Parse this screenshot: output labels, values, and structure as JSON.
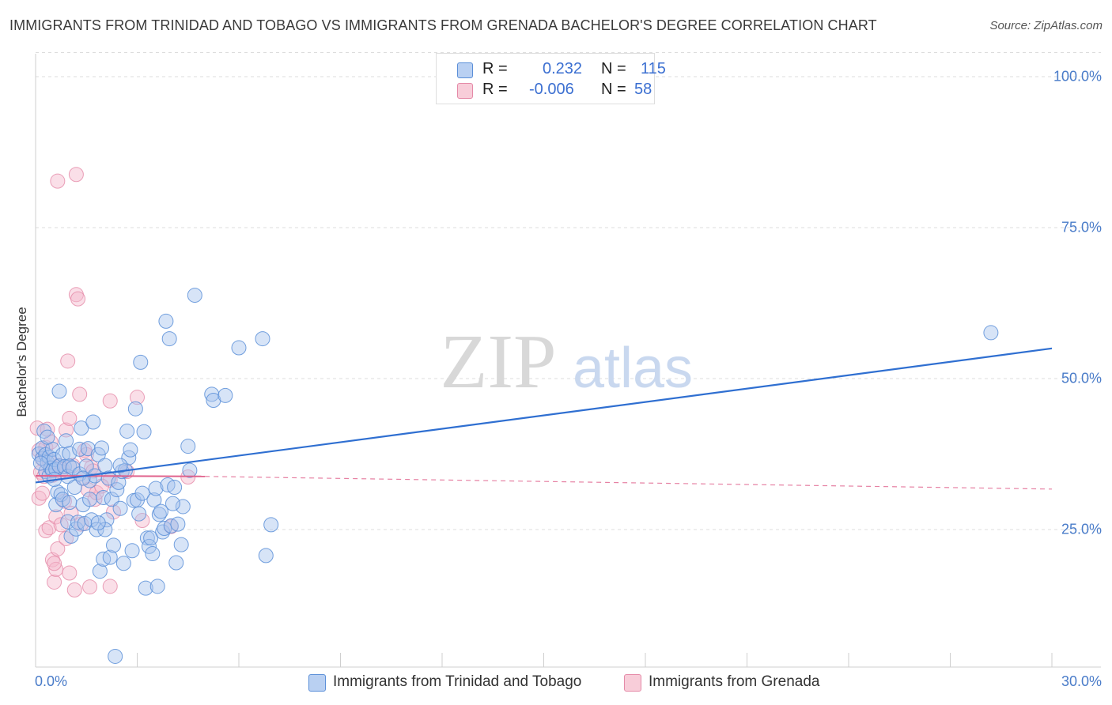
{
  "header": {
    "title": "IMMIGRANTS FROM TRINIDAD AND TOBAGO VS IMMIGRANTS FROM GRENADA BACHELOR'S DEGREE CORRELATION CHART",
    "source": "Source: ZipAtlas.com"
  },
  "legend": {
    "r_label": "R =",
    "n_label": "N =",
    "series_a": {
      "r": "0.232",
      "n": "115"
    },
    "series_b": {
      "r": "-0.006",
      "n": "58"
    }
  },
  "watermark": {
    "part1": "ZIP",
    "part2": "atlas"
  },
  "colors": {
    "blue_fill": "#a7c4ee",
    "blue_stroke": "#5b8fd8",
    "blue_line": "#2f6fd1",
    "pink_fill": "#f4b8cb",
    "pink_stroke": "#e58aa8",
    "pink_line": "#e0628c",
    "grid": "#dddddd",
    "tick_text": "#4a7cc9"
  },
  "chart_data": {
    "type": "scatter",
    "title": "IMMIGRANTS FROM TRINIDAD AND TOBAGO VS IMMIGRANTS FROM GRENADA BACHELOR'S DEGREE CORRELATION CHART",
    "xlabel": "",
    "ylabel": "Bachelor's Degree",
    "xlim": [
      0,
      30
    ],
    "ylim": [
      0,
      104
    ],
    "x_tick_labels": [
      "0.0%",
      "30.0%"
    ],
    "y_ticks": [
      25,
      50,
      75,
      100
    ],
    "y_tick_labels": [
      "25.0%",
      "50.0%",
      "75.0%",
      "100.0%"
    ],
    "grid": true,
    "legend_position": "top-center",
    "series": [
      {
        "name": "Immigrants from Trinidad and Tobago",
        "color": "#5b8fd8",
        "trend": {
          "x": [
            0,
            30
          ],
          "y": [
            32.8,
            55.0
          ],
          "style": "solid"
        },
        "points": [
          [
            0.1,
            37.5
          ],
          [
            0.2,
            36.8
          ],
          [
            0.2,
            38.5
          ],
          [
            0.25,
            41.3
          ],
          [
            0.3,
            37.4
          ],
          [
            0.3,
            34.6
          ],
          [
            0.35,
            36.1
          ],
          [
            0.4,
            33.9
          ],
          [
            0.4,
            37.0
          ],
          [
            0.45,
            35.2
          ],
          [
            0.5,
            38.3
          ],
          [
            0.5,
            34.8
          ],
          [
            0.55,
            36.6
          ],
          [
            0.6,
            35.0
          ],
          [
            0.6,
            29.1
          ],
          [
            0.65,
            31.2
          ],
          [
            0.7,
            47.9
          ],
          [
            0.7,
            35.5
          ],
          [
            0.75,
            30.8
          ],
          [
            0.8,
            30.0
          ],
          [
            0.8,
            37.4
          ],
          [
            0.85,
            35.4
          ],
          [
            0.9,
            39.7
          ],
          [
            0.95,
            33.8
          ],
          [
            0.95,
            26.3
          ],
          [
            1.0,
            37.6
          ],
          [
            1.0,
            35.5
          ],
          [
            1.05,
            23.9
          ],
          [
            1.1,
            35.2
          ],
          [
            1.15,
            32.0
          ],
          [
            1.2,
            25.1
          ],
          [
            1.25,
            26.2
          ],
          [
            1.3,
            34.2
          ],
          [
            1.3,
            38.3
          ],
          [
            1.35,
            41.8
          ],
          [
            1.4,
            29.1
          ],
          [
            1.45,
            26.0
          ],
          [
            1.5,
            35.5
          ],
          [
            1.55,
            38.4
          ],
          [
            1.6,
            30.0
          ],
          [
            1.6,
            33.1
          ],
          [
            1.65,
            26.6
          ],
          [
            1.7,
            42.8
          ],
          [
            1.75,
            33.9
          ],
          [
            1.8,
            25.0
          ],
          [
            1.85,
            37.4
          ],
          [
            1.9,
            18.1
          ],
          [
            1.95,
            38.5
          ],
          [
            2.0,
            30.3
          ],
          [
            2.0,
            20.1
          ],
          [
            2.05,
            35.6
          ],
          [
            2.1,
            26.6
          ],
          [
            2.15,
            33.5
          ],
          [
            2.2,
            20.4
          ],
          [
            2.25,
            30.0
          ],
          [
            2.3,
            22.4
          ],
          [
            2.35,
            4.0
          ],
          [
            2.4,
            31.6
          ],
          [
            2.45,
            32.8
          ],
          [
            2.5,
            28.5
          ],
          [
            2.55,
            34.6
          ],
          [
            2.6,
            19.4
          ],
          [
            2.65,
            34.8
          ],
          [
            2.7,
            41.3
          ],
          [
            2.75,
            36.9
          ],
          [
            2.8,
            38.2
          ],
          [
            2.85,
            21.5
          ],
          [
            2.9,
            29.8
          ],
          [
            2.95,
            45.0
          ],
          [
            3.0,
            29.9
          ],
          [
            3.1,
            52.7
          ],
          [
            3.15,
            31.0
          ],
          [
            3.2,
            41.2
          ],
          [
            3.25,
            15.3
          ],
          [
            3.3,
            23.6
          ],
          [
            3.35,
            22.2
          ],
          [
            3.4,
            23.6
          ],
          [
            3.45,
            21.0
          ],
          [
            3.5,
            29.9
          ],
          [
            3.55,
            31.8
          ],
          [
            3.6,
            15.6
          ],
          [
            3.65,
            27.5
          ],
          [
            3.7,
            28.0
          ],
          [
            3.75,
            24.6
          ],
          [
            3.8,
            25.2
          ],
          [
            3.85,
            59.5
          ],
          [
            3.9,
            32.4
          ],
          [
            3.95,
            56.6
          ],
          [
            4.0,
            25.6
          ],
          [
            4.1,
            32.0
          ],
          [
            4.15,
            19.5
          ],
          [
            4.2,
            25.9
          ],
          [
            4.3,
            22.5
          ],
          [
            4.35,
            28.8
          ],
          [
            4.5,
            38.8
          ],
          [
            4.55,
            34.8
          ],
          [
            4.7,
            63.8
          ],
          [
            5.2,
            47.4
          ],
          [
            5.25,
            46.4
          ],
          [
            5.6,
            47.2
          ],
          [
            6.0,
            55.1
          ],
          [
            6.7,
            56.6
          ],
          [
            6.8,
            20.7
          ],
          [
            6.95,
            25.8
          ],
          [
            28.2,
            57.6
          ],
          [
            0.15,
            36.0
          ],
          [
            0.35,
            40.3
          ],
          [
            0.55,
            33.3
          ],
          [
            1.0,
            29.5
          ],
          [
            1.4,
            33.5
          ],
          [
            2.05,
            25.0
          ],
          [
            2.5,
            35.6
          ],
          [
            3.05,
            27.6
          ],
          [
            4.05,
            29.3
          ],
          [
            1.85,
            26.1
          ]
        ]
      },
      {
        "name": "Immigrants from Grenada",
        "color": "#e58aa8",
        "trend": {
          "x": [
            0,
            5.0
          ],
          "y": [
            33.9,
            33.8
          ],
          "style": "solid"
        },
        "trend_extension": {
          "x": [
            5.0,
            30
          ],
          "y": [
            33.8,
            31.7
          ],
          "style": "dashed"
        },
        "points": [
          [
            0.05,
            41.8
          ],
          [
            0.1,
            38.1
          ],
          [
            0.1,
            30.2
          ],
          [
            0.15,
            34.5
          ],
          [
            0.2,
            36.7
          ],
          [
            0.2,
            31.0
          ],
          [
            0.25,
            33.8
          ],
          [
            0.3,
            38.6
          ],
          [
            0.3,
            24.8
          ],
          [
            0.35,
            41.6
          ],
          [
            0.4,
            36.4
          ],
          [
            0.4,
            25.3
          ],
          [
            0.45,
            39.5
          ],
          [
            0.5,
            20.0
          ],
          [
            0.5,
            34.0
          ],
          [
            0.55,
            16.3
          ],
          [
            0.6,
            18.4
          ],
          [
            0.6,
            27.1
          ],
          [
            0.65,
            21.8
          ],
          [
            0.65,
            82.7
          ],
          [
            0.7,
            35.6
          ],
          [
            0.75,
            25.8
          ],
          [
            0.8,
            34.9
          ],
          [
            0.85,
            29.7
          ],
          [
            0.9,
            41.5
          ],
          [
            0.9,
            23.5
          ],
          [
            0.95,
            52.9
          ],
          [
            1.0,
            43.4
          ],
          [
            1.0,
            17.8
          ],
          [
            1.05,
            27.7
          ],
          [
            1.1,
            35.6
          ],
          [
            1.15,
            15.0
          ],
          [
            1.2,
            83.8
          ],
          [
            1.2,
            63.9
          ],
          [
            1.25,
            63.2
          ],
          [
            1.3,
            47.4
          ],
          [
            1.35,
            25.9
          ],
          [
            1.4,
            33.5
          ],
          [
            1.45,
            38.1
          ],
          [
            1.5,
            37.4
          ],
          [
            1.55,
            31.6
          ],
          [
            1.6,
            15.5
          ],
          [
            1.65,
            35.3
          ],
          [
            1.7,
            34.7
          ],
          [
            1.75,
            30.0
          ],
          [
            1.8,
            31.1
          ],
          [
            2.2,
            33.2
          ],
          [
            2.2,
            15.6
          ],
          [
            2.2,
            46.3
          ],
          [
            2.3,
            27.9
          ],
          [
            2.7,
            34.6
          ],
          [
            3.0,
            46.9
          ],
          [
            3.15,
            26.5
          ],
          [
            4.0,
            25.5
          ],
          [
            4.5,
            33.7
          ],
          [
            0.55,
            19.4
          ],
          [
            0.75,
            34.6
          ],
          [
            1.95,
            32.2
          ]
        ]
      }
    ]
  },
  "bottom_legend": {
    "series_a": "Immigrants from Trinidad and Tobago",
    "series_b": "Immigrants from Grenada"
  }
}
